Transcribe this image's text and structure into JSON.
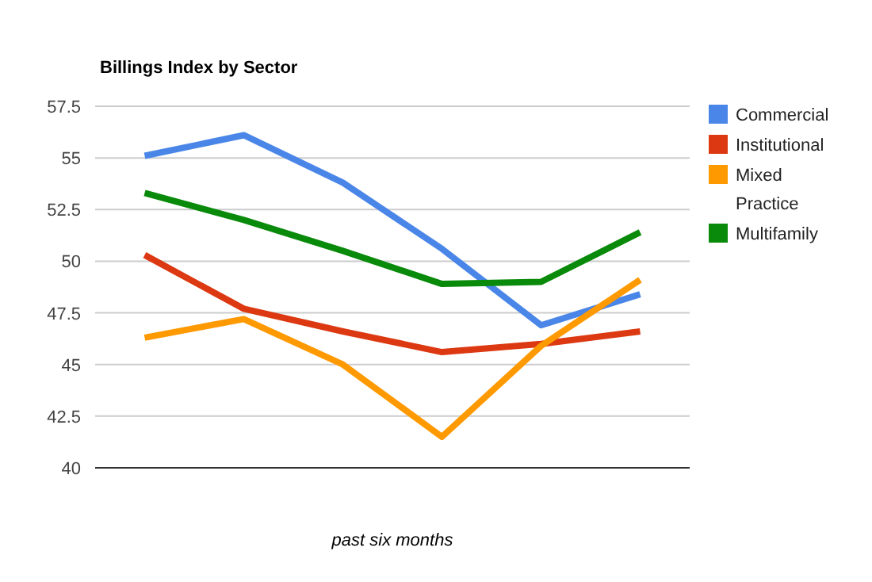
{
  "chart_data": {
    "type": "line",
    "title": "Billings Index by Sector",
    "xlabel": "past six months",
    "categories": [
      null,
      null,
      null,
      null,
      null,
      null
    ],
    "series": [
      {
        "name": "Commercial",
        "color": "#4a86e8",
        "values": [
          55.1,
          56.1,
          53.8,
          50.6,
          46.9,
          48.4
        ]
      },
      {
        "name": "Institutional",
        "color": "#dc3912",
        "values": [
          50.3,
          47.7,
          46.6,
          45.6,
          46.0,
          46.6
        ]
      },
      {
        "name": "Mixed Practice",
        "color": "#ff9900",
        "values": [
          46.3,
          47.2,
          45.0,
          41.5,
          45.9,
          49.1
        ]
      },
      {
        "name": "Multifamily",
        "color": "#098a0a",
        "values": [
          53.3,
          52.0,
          50.5,
          48.9,
          49.0,
          51.4
        ]
      }
    ],
    "ylim": [
      40,
      57.5
    ],
    "yticks": [
      40,
      42.5,
      45,
      47.5,
      50,
      52.5,
      55,
      57.5
    ],
    "grid": "y",
    "legend": "top right",
    "marker": "none",
    "line_style": "solid"
  }
}
